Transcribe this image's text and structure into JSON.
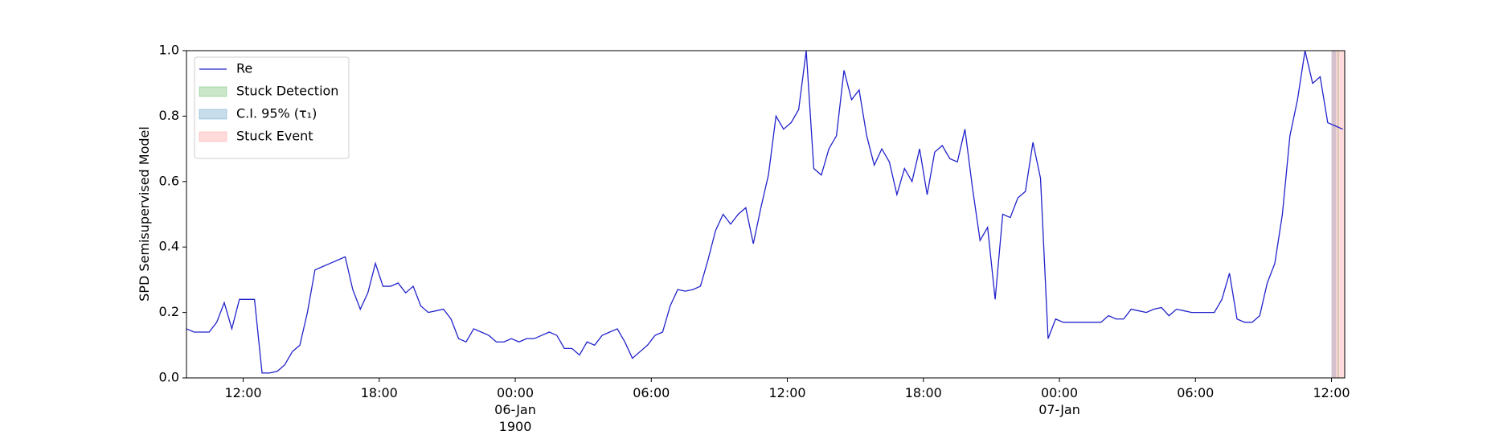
{
  "chart_data": {
    "type": "line",
    "ylabel": "SPD Semisupervised Model",
    "x": [
      "1900-01-05T09:30",
      "1900-01-05T09:50",
      "1900-01-05T10:10",
      "1900-01-05T10:30",
      "1900-01-05T10:50",
      "1900-01-05T11:10",
      "1900-01-05T11:30",
      "1900-01-05T11:50",
      "1900-01-05T12:10",
      "1900-01-05T12:30",
      "1900-01-05T12:50",
      "1900-01-05T13:10",
      "1900-01-05T13:30",
      "1900-01-05T13:50",
      "1900-01-05T14:10",
      "1900-01-05T14:30",
      "1900-01-05T14:50",
      "1900-01-05T15:10",
      "1900-01-05T15:30",
      "1900-01-05T15:50",
      "1900-01-05T16:10",
      "1900-01-05T16:30",
      "1900-01-05T16:50",
      "1900-01-05T17:10",
      "1900-01-05T17:30",
      "1900-01-05T17:50",
      "1900-01-05T18:10",
      "1900-01-05T18:30",
      "1900-01-05T18:50",
      "1900-01-05T19:10",
      "1900-01-05T19:30",
      "1900-01-05T19:50",
      "1900-01-05T20:10",
      "1900-01-05T20:30",
      "1900-01-05T20:50",
      "1900-01-05T21:10",
      "1900-01-05T21:30",
      "1900-01-05T21:50",
      "1900-01-05T22:10",
      "1900-01-05T22:30",
      "1900-01-05T22:50",
      "1900-01-05T23:10",
      "1900-01-05T23:30",
      "1900-01-05T23:50",
      "1900-01-06T00:10",
      "1900-01-06T00:30",
      "1900-01-06T00:50",
      "1900-01-06T01:10",
      "1900-01-06T01:30",
      "1900-01-06T01:50",
      "1900-01-06T02:10",
      "1900-01-06T02:30",
      "1900-01-06T02:50",
      "1900-01-06T03:10",
      "1900-01-06T03:30",
      "1900-01-06T03:50",
      "1900-01-06T04:10",
      "1900-01-06T04:30",
      "1900-01-06T04:50",
      "1900-01-06T05:10",
      "1900-01-06T05:30",
      "1900-01-06T05:50",
      "1900-01-06T06:10",
      "1900-01-06T06:30",
      "1900-01-06T06:50",
      "1900-01-06T07:10",
      "1900-01-06T07:30",
      "1900-01-06T07:50",
      "1900-01-06T08:10",
      "1900-01-06T08:30",
      "1900-01-06T08:50",
      "1900-01-06T09:10",
      "1900-01-06T09:30",
      "1900-01-06T09:50",
      "1900-01-06T10:10",
      "1900-01-06T10:30",
      "1900-01-06T10:50",
      "1900-01-06T11:10",
      "1900-01-06T11:30",
      "1900-01-06T11:50",
      "1900-01-06T12:10",
      "1900-01-06T12:30",
      "1900-01-06T12:50",
      "1900-01-06T13:10",
      "1900-01-06T13:30",
      "1900-01-06T13:50",
      "1900-01-06T14:10",
      "1900-01-06T14:30",
      "1900-01-06T14:50",
      "1900-01-06T15:10",
      "1900-01-06T15:30",
      "1900-01-06T15:50",
      "1900-01-06T16:10",
      "1900-01-06T16:30",
      "1900-01-06T16:50",
      "1900-01-06T17:10",
      "1900-01-06T17:30",
      "1900-01-06T17:50",
      "1900-01-06T18:10",
      "1900-01-06T18:30",
      "1900-01-06T18:50",
      "1900-01-06T19:10",
      "1900-01-06T19:30",
      "1900-01-06T19:50",
      "1900-01-06T20:10",
      "1900-01-06T20:30",
      "1900-01-06T20:50",
      "1900-01-06T21:10",
      "1900-01-06T21:30",
      "1900-01-06T21:50",
      "1900-01-06T22:10",
      "1900-01-06T22:30",
      "1900-01-06T22:50",
      "1900-01-06T23:10",
      "1900-01-06T23:30",
      "1900-01-06T23:50",
      "1900-01-07T00:10",
      "1900-01-07T00:30",
      "1900-01-07T00:50",
      "1900-01-07T01:10",
      "1900-01-07T01:30",
      "1900-01-07T01:50",
      "1900-01-07T02:10",
      "1900-01-07T02:30",
      "1900-01-07T02:50",
      "1900-01-07T03:10",
      "1900-01-07T03:30",
      "1900-01-07T03:50",
      "1900-01-07T04:10",
      "1900-01-07T04:30",
      "1900-01-07T04:50",
      "1900-01-07T05:10",
      "1900-01-07T05:30",
      "1900-01-07T05:50",
      "1900-01-07T06:10",
      "1900-01-07T06:30",
      "1900-01-07T06:50",
      "1900-01-07T07:10",
      "1900-01-07T07:30",
      "1900-01-07T07:50",
      "1900-01-07T08:10",
      "1900-01-07T08:30",
      "1900-01-07T08:50",
      "1900-01-07T09:10",
      "1900-01-07T09:30",
      "1900-01-07T09:50",
      "1900-01-07T10:10",
      "1900-01-07T10:30",
      "1900-01-07T10:50",
      "1900-01-07T11:10",
      "1900-01-07T11:30",
      "1900-01-07T11:50",
      "1900-01-07T12:10",
      "1900-01-07T12:30"
    ],
    "series": [
      {
        "name": "Re",
        "color": "#2222cc",
        "values": [
          0.15,
          0.14,
          0.14,
          0.14,
          0.17,
          0.23,
          0.15,
          0.24,
          0.24,
          0.24,
          0.015,
          0.015,
          0.02,
          0.04,
          0.08,
          0.1,
          0.2,
          0.33,
          0.34,
          0.35,
          0.36,
          0.37,
          0.27,
          0.21,
          0.26,
          0.35,
          0.28,
          0.28,
          0.29,
          0.26,
          0.28,
          0.22,
          0.2,
          0.205,
          0.21,
          0.18,
          0.12,
          0.11,
          0.15,
          0.14,
          0.13,
          0.11,
          0.11,
          0.12,
          0.11,
          0.12,
          0.12,
          0.13,
          0.14,
          0.13,
          0.09,
          0.09,
          0.07,
          0.11,
          0.1,
          0.13,
          0.14,
          0.15,
          0.11,
          0.06,
          0.08,
          0.1,
          0.13,
          0.14,
          0.22,
          0.27,
          0.265,
          0.27,
          0.28,
          0.36,
          0.45,
          0.5,
          0.47,
          0.5,
          0.52,
          0.41,
          0.52,
          0.62,
          0.8,
          0.76,
          0.78,
          0.82,
          1.0,
          0.64,
          0.62,
          0.7,
          0.74,
          0.94,
          0.85,
          0.88,
          0.74,
          0.65,
          0.7,
          0.66,
          0.56,
          0.64,
          0.6,
          0.7,
          0.56,
          0.69,
          0.71,
          0.67,
          0.66,
          0.76,
          0.58,
          0.42,
          0.46,
          0.24,
          0.5,
          0.49,
          0.55,
          0.57,
          0.72,
          0.61,
          0.12,
          0.18,
          0.17,
          0.17,
          0.17,
          0.17,
          0.17,
          0.17,
          0.19,
          0.18,
          0.18,
          0.21,
          0.205,
          0.2,
          0.21,
          0.215,
          0.19,
          0.21,
          0.205,
          0.2,
          0.2,
          0.2,
          0.2,
          0.24,
          0.32,
          0.18,
          0.17,
          0.17,
          0.19,
          0.29,
          0.35,
          0.5,
          0.74,
          0.85,
          1.0,
          0.9,
          0.92,
          0.78,
          0.77,
          0.76
        ]
      }
    ],
    "spans": [
      {
        "name": "Stuck Detection",
        "color": "#2ca02c",
        "x": [
          "1900-01-07T12:15",
          "1900-01-07T12:20"
        ]
      },
      {
        "name": "C.I. 95% (τ₁)",
        "color": "#1f77b4",
        "x": [
          "1900-01-07T12:00",
          "1900-01-07T12:12"
        ]
      },
      {
        "name": "Stuck Event",
        "color": "#ff6f6f",
        "x": [
          "1900-01-07T12:00",
          "1900-01-07T12:35"
        ]
      }
    ],
    "xlim": [
      "1900-01-05T09:30",
      "1900-01-07T12:35"
    ],
    "xticks": [
      {
        "value": "1900-01-05T12:00",
        "label": "12:00"
      },
      {
        "value": "1900-01-05T18:00",
        "label": "18:00"
      },
      {
        "value": "1900-01-06T00:00",
        "label": "00:00\n06-Jan\n1900"
      },
      {
        "value": "1900-01-06T06:00",
        "label": "06:00"
      },
      {
        "value": "1900-01-06T12:00",
        "label": "12:00"
      },
      {
        "value": "1900-01-06T18:00",
        "label": "18:00"
      },
      {
        "value": "1900-01-07T00:00",
        "label": "00:00\n07-Jan"
      },
      {
        "value": "1900-01-07T06:00",
        "label": "06:00"
      },
      {
        "value": "1900-01-07T12:00",
        "label": "12:00"
      }
    ],
    "ylim": [
      0,
      1
    ],
    "yticks": [
      {
        "value": 0,
        "label": "0.0"
      },
      {
        "value": 0.2,
        "label": "0.2"
      },
      {
        "value": 0.4,
        "label": "0.4"
      },
      {
        "value": 0.6,
        "label": "0.6"
      },
      {
        "value": 0.8,
        "label": "0.8"
      },
      {
        "value": 1,
        "label": "1.0"
      }
    ],
    "legend": "upper left"
  }
}
